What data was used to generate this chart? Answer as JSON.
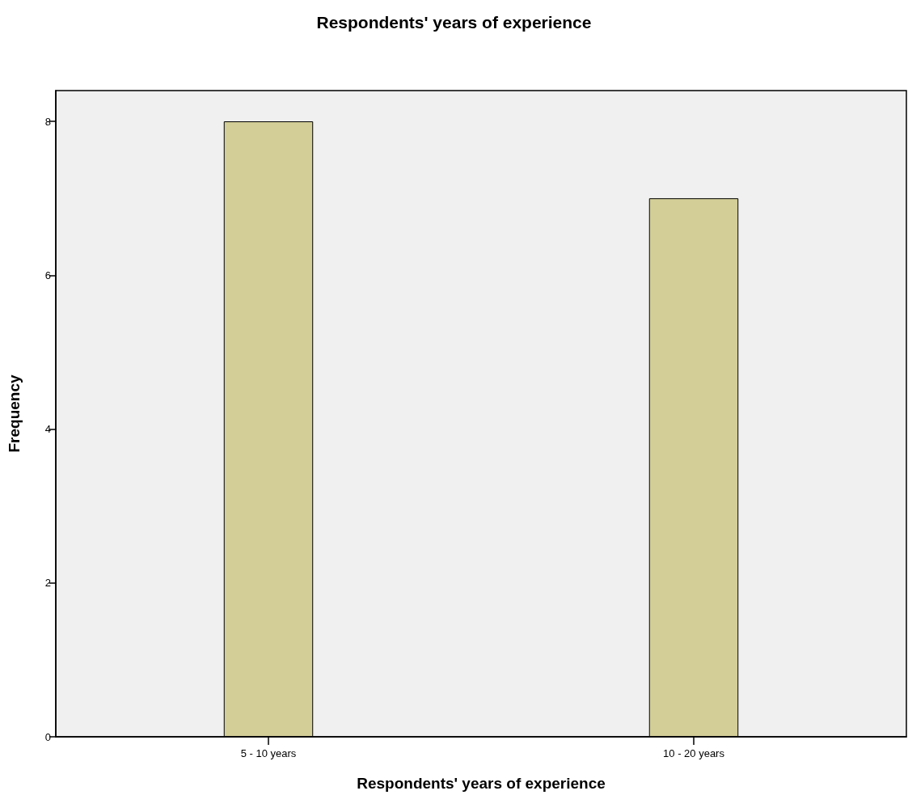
{
  "chart_data": {
    "type": "bar",
    "title": "Respondents' years of experience",
    "xlabel": "Respondents' years of experience",
    "ylabel": "Frequency",
    "categories": [
      "5 - 10 years",
      "10 - 20 years"
    ],
    "values": [
      8,
      7
    ],
    "color": "#d3ce97",
    "ylim": [
      0,
      8.4
    ],
    "yticks": [
      0,
      2,
      4,
      6,
      8
    ],
    "grid": false
  }
}
